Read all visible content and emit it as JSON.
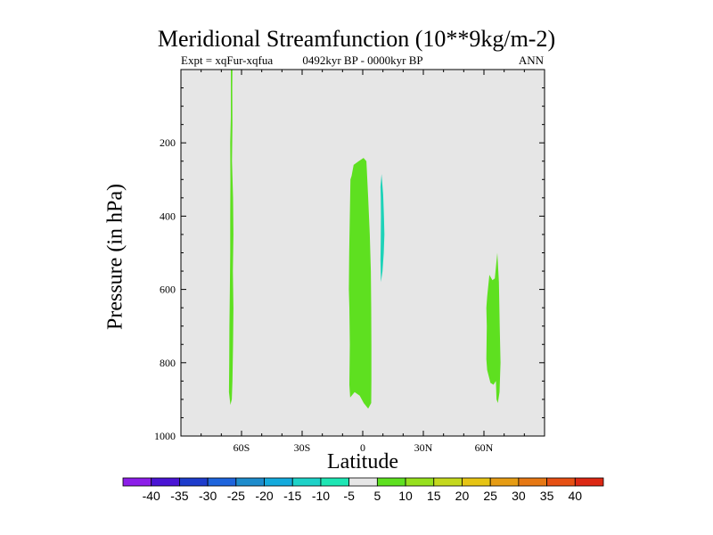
{
  "header": {
    "title": "Meridional Streamfunction (10**9kg/m-2)",
    "left_sub": "Expt = xqFur-xqfua",
    "center_sub": "0492kyr BP - 0000kyr BP",
    "right_sub": "ANN"
  },
  "chart_data": {
    "type": "contour",
    "title": "Meridional Streamfunction (10**9kg/m-2)",
    "xlabel": "Latitude",
    "ylabel": "Pressure (in hPa)",
    "xlim": [
      -90,
      90
    ],
    "ylim": [
      1000,
      0
    ],
    "xticks": [
      {
        "value": -60,
        "label": "60S"
      },
      {
        "value": -30,
        "label": "30S"
      },
      {
        "value": 0,
        "label": "0"
      },
      {
        "value": 30,
        "label": "30N"
      },
      {
        "value": 60,
        "label": "60N"
      }
    ],
    "yticks": [
      {
        "value": 200,
        "label": "200"
      },
      {
        "value": 400,
        "label": "400"
      },
      {
        "value": 600,
        "label": "600"
      },
      {
        "value": 800,
        "label": "800"
      },
      {
        "value": 1000,
        "label": "1000"
      }
    ],
    "background_color": "#e6e6e6",
    "regions": [
      {
        "name": "cell-60s",
        "level": "5 to 10",
        "color": "#5ee020",
        "polygon": [
          [
            -65.3,
            0
          ],
          [
            -64.5,
            0
          ],
          [
            -64.6,
            50
          ],
          [
            -64.5,
            150
          ],
          [
            -64.7,
            250
          ],
          [
            -64.2,
            350
          ],
          [
            -64.0,
            450
          ],
          [
            -64.3,
            550
          ],
          [
            -64.0,
            650
          ],
          [
            -64.2,
            750
          ],
          [
            -64.5,
            850
          ],
          [
            -64.8,
            900
          ],
          [
            -65.5,
            915
          ],
          [
            -66.2,
            880
          ],
          [
            -66.1,
            800
          ],
          [
            -66.0,
            700
          ],
          [
            -65.8,
            600
          ],
          [
            -65.6,
            500
          ],
          [
            -65.6,
            400
          ],
          [
            -65.5,
            300
          ],
          [
            -65.6,
            200
          ],
          [
            -65.3,
            130
          ]
        ]
      },
      {
        "name": "cell-equator",
        "level": "5 to 10",
        "color": "#5ee020",
        "polygon": [
          [
            -5.5,
            290
          ],
          [
            -4.5,
            260
          ],
          [
            -2.0,
            250
          ],
          [
            0.4,
            241
          ],
          [
            1.8,
            250
          ],
          [
            2.7,
            350
          ],
          [
            3.5,
            450
          ],
          [
            4.0,
            550
          ],
          [
            4.2,
            650
          ],
          [
            4.3,
            750
          ],
          [
            4.3,
            850
          ],
          [
            4.2,
            910
          ],
          [
            2.7,
            925
          ],
          [
            0.5,
            910
          ],
          [
            -1.5,
            890
          ],
          [
            -4.0,
            880
          ],
          [
            -6.2,
            895
          ],
          [
            -6.6,
            860
          ],
          [
            -6.4,
            750
          ],
          [
            -6.6,
            650
          ],
          [
            -6.9,
            600
          ],
          [
            -6.7,
            500
          ],
          [
            -6.4,
            400
          ],
          [
            -6.1,
            300
          ]
        ]
      },
      {
        "name": "cell-10n",
        "level": "-10 to -5",
        "color": "#1ed2b8",
        "polygon": [
          [
            9.3,
            285
          ],
          [
            10.1,
            340
          ],
          [
            10.5,
            400
          ],
          [
            10.7,
            450
          ],
          [
            10.4,
            500
          ],
          [
            9.8,
            550
          ],
          [
            9.0,
            580
          ],
          [
            8.8,
            520
          ],
          [
            8.9,
            470
          ],
          [
            9.0,
            400
          ],
          [
            8.9,
            350
          ],
          [
            8.8,
            320
          ]
        ]
      },
      {
        "name": "cell-65n",
        "level": "5 to 10",
        "color": "#5ee020",
        "polygon": [
          [
            66.6,
            500
          ],
          [
            67.4,
            580
          ],
          [
            67.8,
            700
          ],
          [
            68.2,
            800
          ],
          [
            67.7,
            880
          ],
          [
            66.9,
            910
          ],
          [
            66.2,
            900
          ],
          [
            65.9,
            850
          ],
          [
            64.7,
            860
          ],
          [
            63.2,
            855
          ],
          [
            61.6,
            820
          ],
          [
            61.2,
            790
          ],
          [
            61.4,
            700
          ],
          [
            61.2,
            650
          ],
          [
            61.6,
            620
          ],
          [
            62.7,
            560
          ],
          [
            64.2,
            575
          ],
          [
            65.4,
            570
          ]
        ]
      }
    ],
    "colorbar": {
      "levels": [
        -40,
        -35,
        -30,
        -25,
        -20,
        -15,
        -10,
        -5,
        5,
        10,
        15,
        20,
        25,
        30,
        35,
        40
      ],
      "colors": [
        "#8c1ee8",
        "#4a14d4",
        "#1e3ccc",
        "#1e64dc",
        "#1e8ccc",
        "#14aadc",
        "#1ed2c8",
        "#1ee6b4",
        "#e6e6e6",
        "#5ee020",
        "#96e01e",
        "#c4d81e",
        "#e6c414",
        "#e69c14",
        "#e67814",
        "#e65014",
        "#dc2814"
      ]
    }
  }
}
